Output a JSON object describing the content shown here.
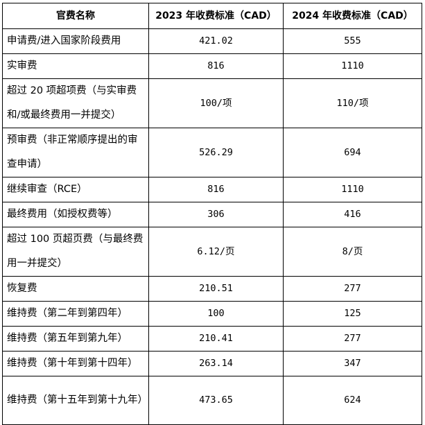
{
  "table": {
    "headers": [
      "官费名称",
      "2023 年收费标准（CAD）",
      "2024 年收费标准（CAD）"
    ],
    "rows": [
      {
        "name": "申请费/进入国家阶段费用",
        "y2023": "421.02",
        "y2024": "555"
      },
      {
        "name": "实审费",
        "y2023": "816",
        "y2024": "1110"
      },
      {
        "name": "超过 20 项超项费（与实审费和/或最终费用一并提交）",
        "y2023": "100/项",
        "y2024": "110/项"
      },
      {
        "name": "预审费（非正常顺序提出的审查申请）",
        "y2023": "526.29",
        "y2024": "694"
      },
      {
        "name": "继续审查（RCE）",
        "y2023": "816",
        "y2024": "1110"
      },
      {
        "name": "最终费用（如授权费等）",
        "y2023": "306",
        "y2024": "416"
      },
      {
        "name": "超过 100 页超页费（与最终费用一并提交）",
        "y2023": "6.12/页",
        "y2024": "8/页"
      },
      {
        "name": "恢复费",
        "y2023": "210.51",
        "y2024": "277"
      },
      {
        "name": "维持费（第二年到第四年）",
        "y2023": "100",
        "y2024": "125"
      },
      {
        "name": "维持费（第五年到第九年）",
        "y2023": "210.41",
        "y2024": "277"
      },
      {
        "name": "维持费（第十年到第十四年）",
        "y2023": "263.14",
        "y2024": "347"
      },
      {
        "name": "维持费（第十五年到第十九年）",
        "y2023": "473.65",
        "y2024": "624"
      }
    ]
  }
}
